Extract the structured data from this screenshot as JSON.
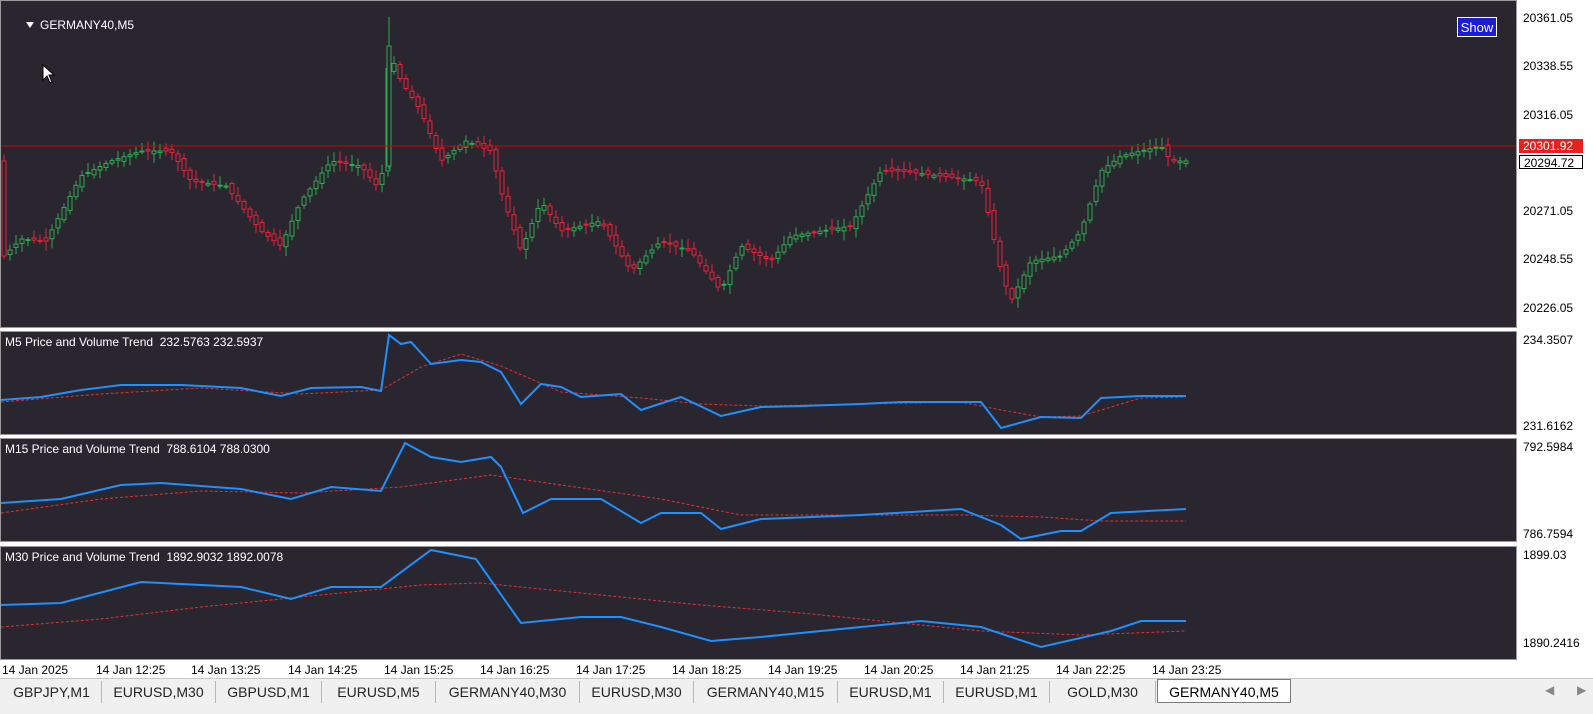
{
  "main_chart": {
    "title": "GERMANY40,M5",
    "show_button": "Show",
    "price_labels": [
      "20361.05",
      "20338.55",
      "20316.05",
      "20271.05",
      "20248.55",
      "20226.05"
    ],
    "current_price": "20301.92",
    "bid_price": "20294.72",
    "price_range": [
      20218,
      20366
    ],
    "horizontal_line": 20301.92,
    "colors": {
      "bull": "#2fa84f",
      "bear": "#e8203a",
      "line": "#d40000"
    }
  },
  "indicators": [
    {
      "title": "M5 Price and Volume Trend  232.5763 232.5937",
      "max_label": "234.3507",
      "min_label": "231.6162"
    },
    {
      "title": "M15 Price and Volume Trend  788.6104 788.0300",
      "max_label": "792.5984",
      "min_label": "786.7594"
    },
    {
      "title": "M30 Price and Volume Trend  1892.9032 1892.0078",
      "max_label": "1899.03",
      "min_label": "1890.2416"
    }
  ],
  "time_axis": [
    "14 Jan 2025",
    "14 Jan 12:25",
    "14 Jan 13:25",
    "14 Jan 14:25",
    "14 Jan 15:25",
    "14 Jan 16:25",
    "14 Jan 17:25",
    "14 Jan 18:25",
    "14 Jan 19:25",
    "14 Jan 20:25",
    "14 Jan 21:25",
    "14 Jan 22:25",
    "14 Jan 23:25"
  ],
  "tabs": [
    "GBPJPY,M1",
    "EURUSD,M30",
    "GBPUSD,M1",
    "EURUSD,M5",
    "GERMANY40,M30",
    "EURUSD,M30",
    "GERMANY40,M15",
    "EURUSD,M1",
    "EURUSD,M1",
    "GOLD,M30",
    "GERMANY40,M5"
  ],
  "active_tab": "GERMANY40,M5",
  "icons": {
    "prev": "chevron-left-icon",
    "next": "chevron-right-icon",
    "collapse": "triangle-down-icon"
  }
}
